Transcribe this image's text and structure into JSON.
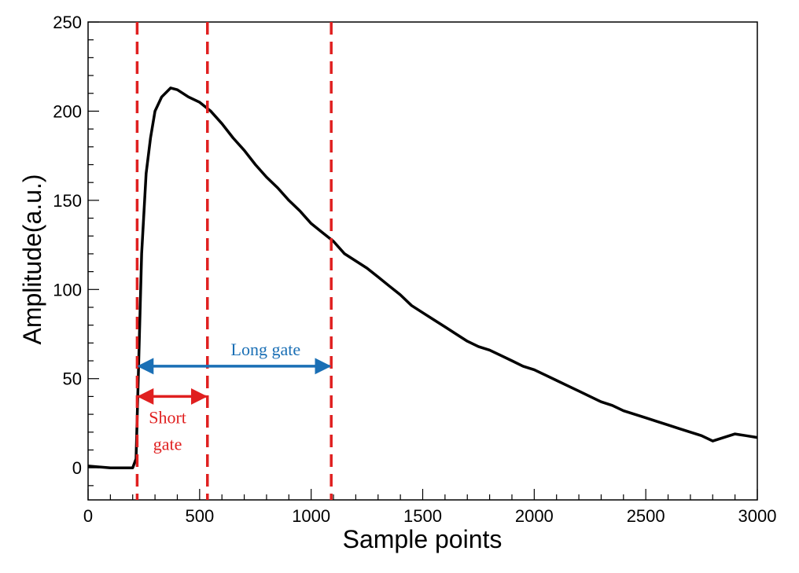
{
  "chart_data": {
    "type": "line",
    "title": "",
    "xlabel": "Sample points",
    "ylabel": "Amplitude(a.u.)",
    "xlim": [
      0,
      3000
    ],
    "ylim": [
      -18,
      250
    ],
    "x_ticks": [
      "0",
      "500",
      "1000",
      "1500",
      "2000",
      "2500",
      "3000"
    ],
    "y_ticks": [
      "0",
      "50",
      "100",
      "150",
      "200",
      "250"
    ],
    "grid": false,
    "series": [
      {
        "color": "#000000",
        "x": [
          0,
          100,
          200,
          215,
          225,
          240,
          260,
          280,
          300,
          330,
          370,
          400,
          450,
          500,
          550,
          600,
          650,
          700,
          750,
          800,
          850,
          900,
          950,
          1000,
          1050,
          1100,
          1150,
          1200,
          1250,
          1300,
          1350,
          1400,
          1450,
          1500,
          1550,
          1600,
          1650,
          1700,
          1750,
          1800,
          1850,
          1900,
          1950,
          2000,
          2050,
          2100,
          2150,
          2200,
          2250,
          2300,
          2350,
          2400,
          2450,
          2500,
          2550,
          2600,
          2650,
          2700,
          2750,
          2800,
          2850,
          2900,
          2950,
          3000
        ],
        "y": [
          1,
          0,
          0,
          5,
          50,
          120,
          165,
          185,
          200,
          208,
          213,
          212,
          208,
          205,
          200,
          193,
          185,
          178,
          170,
          163,
          157,
          150,
          144,
          137,
          132,
          127,
          120,
          116,
          112,
          107,
          102,
          97,
          91,
          87,
          83,
          79,
          75,
          71,
          68,
          66,
          63,
          60,
          57,
          55,
          52,
          49,
          46,
          43,
          40,
          37,
          35,
          32,
          30,
          28,
          26,
          24,
          22,
          20,
          18,
          15,
          17,
          19,
          18,
          17
        ]
      }
    ],
    "vlines": [
      220,
      535,
      1090
    ],
    "vline_color": "#e02020",
    "annotations": {
      "long_gate": {
        "label": "Long gate",
        "from": 220,
        "to": 1090,
        "y": 57,
        "color": "#1a6fb5"
      },
      "short_gate": {
        "label_line1": "Short",
        "label_line2": "gate",
        "from": 220,
        "to": 535,
        "y": 40,
        "color": "#e02020"
      }
    }
  }
}
